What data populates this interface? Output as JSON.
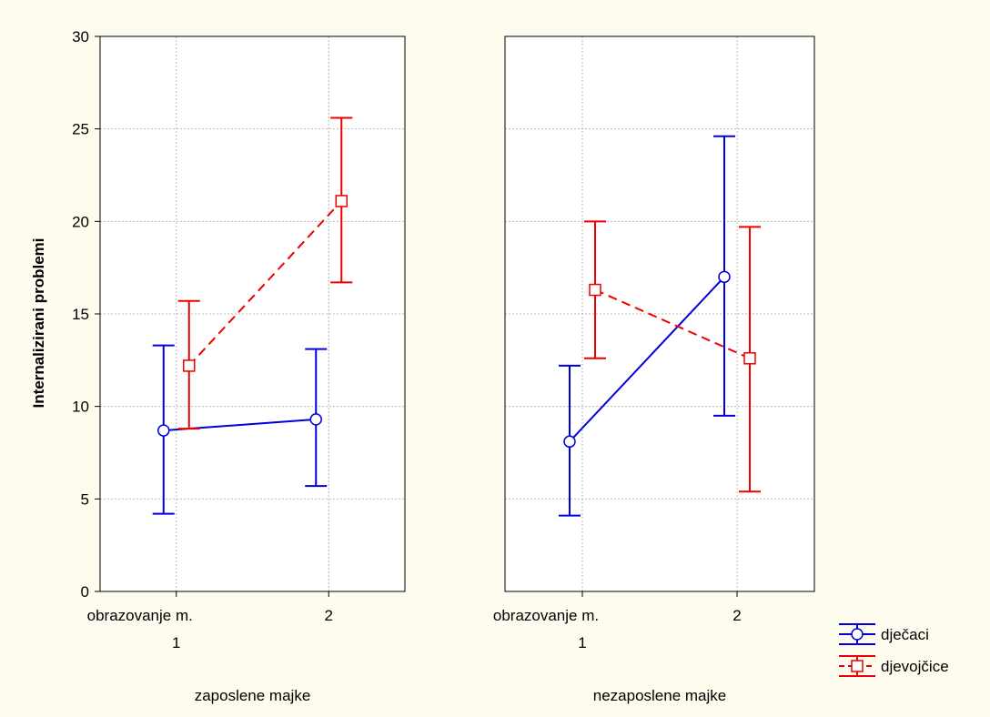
{
  "chart_data": {
    "type": "line",
    "ylabel": "Internalizirani problemi",
    "ylim": [
      0,
      30
    ],
    "yticks": [
      0,
      5,
      10,
      15,
      20,
      25,
      30
    ],
    "x_factor_label": "obrazovanje m.",
    "categories": [
      "1",
      "2"
    ],
    "grid": true,
    "legend_position": "bottom-right",
    "panels": [
      {
        "label": "zaposlene majke",
        "series": [
          {
            "name": "dječaci",
            "color": "#0000dd",
            "marker": "circle",
            "dash": "solid",
            "mean": [
              8.7,
              9.3
            ],
            "lower": [
              4.2,
              5.7
            ],
            "upper": [
              13.3,
              13.1
            ]
          },
          {
            "name": "djevojčice",
            "color": "#ee0000",
            "marker": "square",
            "dash": "dashed",
            "mean": [
              12.2,
              21.1
            ],
            "lower": [
              8.8,
              16.7
            ],
            "upper": [
              15.7,
              25.6
            ]
          }
        ]
      },
      {
        "label": "nezaposlene majke",
        "series": [
          {
            "name": "dječaci",
            "color": "#0000dd",
            "marker": "circle",
            "dash": "solid",
            "mean": [
              8.1,
              17.0
            ],
            "lower": [
              4.1,
              9.5
            ],
            "upper": [
              12.2,
              24.6
            ]
          },
          {
            "name": "djevojčice",
            "color": "#ee0000",
            "marker": "square",
            "dash": "dashed",
            "mean": [
              16.3,
              12.6
            ],
            "lower": [
              12.6,
              5.4
            ],
            "upper": [
              20.0,
              19.7
            ]
          }
        ]
      }
    ],
    "legend": [
      {
        "name": "dječaci",
        "color": "#0000dd",
        "marker": "circle",
        "dash": "solid"
      },
      {
        "name": "djevojčice",
        "color": "#ee0000",
        "marker": "square",
        "dash": "dashed"
      }
    ]
  }
}
